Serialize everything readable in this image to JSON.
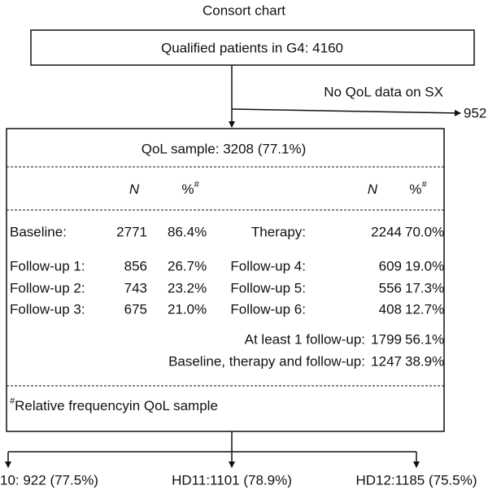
{
  "title": "Consort chart",
  "top_box": "Qualified patients in G4: 4160",
  "exclusion": {
    "label": "No QoL data on SX",
    "count": "952"
  },
  "sample_box": {
    "title": "QoL sample: 3208 (77.1%)",
    "header": [
      {
        "text": "N"
      },
      {
        "text": "%",
        "sup": "#"
      },
      {
        "text": "N"
      },
      {
        "text": "%",
        "sup": "#"
      }
    ],
    "rows": [
      {
        "left": {
          "label": "Baseline:",
          "n": "2771",
          "pct": "86.4%"
        },
        "right": {
          "label": "Therapy:",
          "n": "2244",
          "pct": "70.0%"
        }
      },
      {
        "left": {
          "label": "Follow-up 1:",
          "n": "856",
          "pct": "26.7%"
        },
        "right": {
          "label": "Follow-up 4:",
          "n": "609",
          "pct": "19.0%"
        }
      },
      {
        "left": {
          "label": "Follow-up 2:",
          "n": "743",
          "pct": "23.2%"
        },
        "right": {
          "label": "Follow-up 5:",
          "n": "556",
          "pct": "17.3%"
        }
      },
      {
        "left": {
          "label": "Follow-up 3:",
          "n": "675",
          "pct": "21.0%"
        },
        "right": {
          "label": "Follow-up 6:",
          "n": "408",
          "pct": "12.7%"
        }
      }
    ],
    "summary": [
      {
        "label": "At least 1 follow-up:",
        "n": "1799",
        "pct": "56.1%"
      },
      {
        "label": "Baseline, therapy and follow-up:",
        "n": "1247",
        "pct": "38.9%"
      }
    ],
    "footnote": {
      "sup": "#",
      "text": "Relative frequencyin QoL sample"
    }
  },
  "outcomes": [
    "10: 922 (77.5%)",
    "HD11:1101 (78.9%)",
    "HD12:1185 (75.5%)"
  ]
}
